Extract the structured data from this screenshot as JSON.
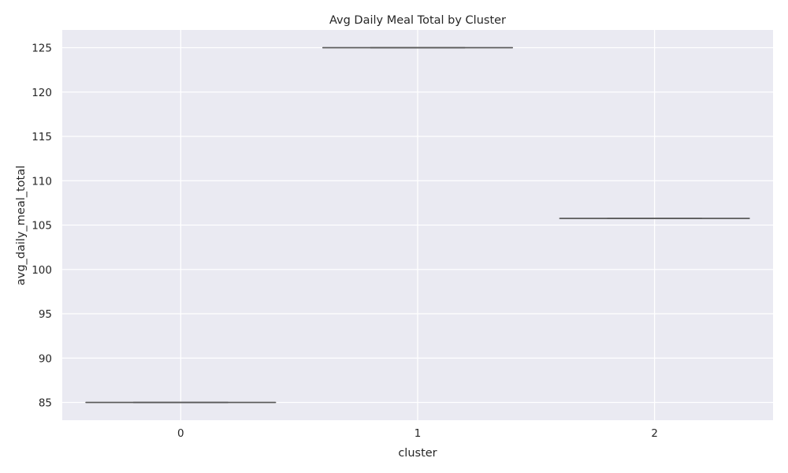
{
  "chart_data": {
    "type": "box",
    "title": "Avg Daily Meal Total by Cluster",
    "xlabel": "cluster",
    "ylabel": "avg_daily_meal_total",
    "categories": [
      "0",
      "1",
      "2"
    ],
    "boxes": [
      {
        "category": "0",
        "min": 85.0,
        "q1": 85.0,
        "median": 85.0,
        "q3": 85.0,
        "max": 85.0
      },
      {
        "category": "1",
        "min": 125.0,
        "q1": 125.0,
        "median": 125.0,
        "q3": 125.0,
        "max": 125.0
      },
      {
        "category": "2",
        "min": 105.75,
        "q1": 105.75,
        "median": 105.75,
        "q3": 105.75,
        "max": 105.75
      }
    ],
    "ylim": [
      83,
      127
    ],
    "yticks": [
      85,
      90,
      95,
      100,
      105,
      110,
      115,
      120,
      125
    ],
    "grid": true,
    "legend": "none",
    "colors": {
      "plot_background": "#eaeaf2",
      "grid": "#ffffff",
      "box_line": "#5a5a5a",
      "text": "#262626"
    }
  }
}
